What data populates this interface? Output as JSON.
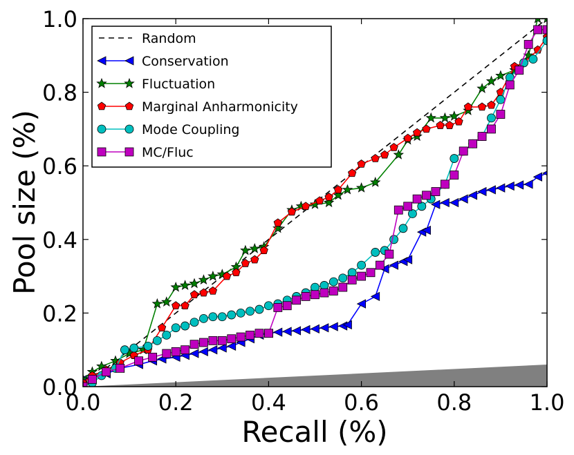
{
  "chart_data": {
    "type": "line",
    "title": "",
    "xlabel": "Recall (%)",
    "ylabel": "Pool size (%)",
    "xlim": [
      0.0,
      1.0
    ],
    "ylim": [
      0.0,
      1.0
    ],
    "xticks": [
      "0.0",
      "0.2",
      "0.4",
      "0.6",
      "0.8",
      "1.0"
    ],
    "yticks": [
      "0.0",
      "0.2",
      "0.4",
      "0.6",
      "0.8",
      "1.0"
    ],
    "legend_position": "top-left",
    "shaded_region": {
      "description": "gray baseline wedge",
      "x": [
        0.0,
        1.0
      ],
      "y_upper": [
        0.0,
        0.06
      ],
      "color": "#808080"
    },
    "series": [
      {
        "name": "Random",
        "color": "#000000",
        "style": "dashed",
        "marker": "none",
        "x": [
          0.0,
          1.0
        ],
        "y": [
          0.0,
          1.0
        ]
      },
      {
        "name": "Conservation",
        "color": "#0000ff",
        "style": "solid",
        "marker": "triangle-left",
        "x": [
          0.0,
          0.02,
          0.05,
          0.08,
          0.12,
          0.15,
          0.17,
          0.2,
          0.22,
          0.24,
          0.26,
          0.28,
          0.3,
          0.32,
          0.34,
          0.36,
          0.38,
          0.4,
          0.42,
          0.44,
          0.46,
          0.48,
          0.5,
          0.52,
          0.54,
          0.56,
          0.57,
          0.6,
          0.63,
          0.65,
          0.67,
          0.69,
          0.7,
          0.73,
          0.74,
          0.76,
          0.78,
          0.8,
          0.82,
          0.84,
          0.86,
          0.88,
          0.9,
          0.92,
          0.94,
          0.96,
          0.98,
          1.0
        ],
        "y": [
          0.02,
          0.025,
          0.035,
          0.05,
          0.06,
          0.07,
          0.075,
          0.08,
          0.085,
          0.09,
          0.095,
          0.1,
          0.105,
          0.11,
          0.12,
          0.13,
          0.14,
          0.145,
          0.148,
          0.15,
          0.152,
          0.155,
          0.157,
          0.16,
          0.163,
          0.165,
          0.168,
          0.225,
          0.245,
          0.32,
          0.33,
          0.34,
          0.345,
          0.42,
          0.425,
          0.495,
          0.5,
          0.5,
          0.51,
          0.52,
          0.53,
          0.535,
          0.54,
          0.545,
          0.548,
          0.55,
          0.57,
          0.58
        ]
      },
      {
        "name": "Fluctuation",
        "color": "#008000",
        "style": "solid",
        "marker": "star",
        "x": [
          0.0,
          0.02,
          0.04,
          0.07,
          0.1,
          0.13,
          0.16,
          0.18,
          0.2,
          0.22,
          0.24,
          0.26,
          0.28,
          0.3,
          0.33,
          0.35,
          0.37,
          0.39,
          0.42,
          0.45,
          0.47,
          0.5,
          0.53,
          0.55,
          0.57,
          0.6,
          0.63,
          0.68,
          0.7,
          0.72,
          0.75,
          0.78,
          0.8,
          0.83,
          0.86,
          0.88,
          0.9,
          0.93,
          0.96,
          0.98,
          1.0
        ],
        "y": [
          0.02,
          0.04,
          0.055,
          0.07,
          0.09,
          0.1,
          0.225,
          0.23,
          0.27,
          0.275,
          0.28,
          0.29,
          0.3,
          0.305,
          0.325,
          0.37,
          0.375,
          0.38,
          0.43,
          0.48,
          0.49,
          0.495,
          0.5,
          0.52,
          0.535,
          0.54,
          0.555,
          0.63,
          0.67,
          0.68,
          0.73,
          0.73,
          0.735,
          0.75,
          0.81,
          0.83,
          0.845,
          0.86,
          0.9,
          1.0,
          1.0
        ]
      },
      {
        "name": "Marginal Anharmonicity",
        "color": "#ff0000",
        "style": "solid",
        "marker": "pentagon",
        "x": [
          0.0,
          0.02,
          0.05,
          0.08,
          0.11,
          0.14,
          0.17,
          0.2,
          0.22,
          0.24,
          0.26,
          0.28,
          0.31,
          0.33,
          0.35,
          0.37,
          0.39,
          0.42,
          0.45,
          0.48,
          0.51,
          0.53,
          0.55,
          0.58,
          0.6,
          0.63,
          0.65,
          0.67,
          0.7,
          0.72,
          0.74,
          0.77,
          0.79,
          0.81,
          0.83,
          0.86,
          0.88,
          0.9,
          0.93,
          0.95,
          0.98,
          1.0
        ],
        "y": [
          0.01,
          0.03,
          0.045,
          0.065,
          0.085,
          0.1,
          0.16,
          0.22,
          0.22,
          0.25,
          0.255,
          0.26,
          0.3,
          0.31,
          0.335,
          0.345,
          0.37,
          0.445,
          0.475,
          0.49,
          0.505,
          0.515,
          0.535,
          0.58,
          0.605,
          0.62,
          0.63,
          0.65,
          0.675,
          0.69,
          0.7,
          0.71,
          0.71,
          0.72,
          0.76,
          0.76,
          0.765,
          0.8,
          0.87,
          0.88,
          0.915,
          0.95
        ]
      },
      {
        "name": "Mode Coupling",
        "color": "#00bfbf",
        "style": "solid",
        "marker": "circle",
        "x": [
          0.0,
          0.02,
          0.04,
          0.07,
          0.09,
          0.11,
          0.14,
          0.16,
          0.18,
          0.2,
          0.22,
          0.24,
          0.26,
          0.28,
          0.3,
          0.32,
          0.34,
          0.36,
          0.38,
          0.4,
          0.42,
          0.44,
          0.46,
          0.48,
          0.5,
          0.52,
          0.54,
          0.56,
          0.58,
          0.6,
          0.63,
          0.65,
          0.67,
          0.69,
          0.71,
          0.73,
          0.75,
          0.78,
          0.8,
          0.82,
          0.84,
          0.86,
          0.88,
          0.9,
          0.92,
          0.95,
          0.97,
          1.0
        ],
        "y": [
          0.0,
          0.01,
          0.03,
          0.05,
          0.1,
          0.105,
          0.11,
          0.125,
          0.14,
          0.16,
          0.165,
          0.175,
          0.185,
          0.19,
          0.19,
          0.195,
          0.2,
          0.205,
          0.21,
          0.22,
          0.225,
          0.235,
          0.245,
          0.255,
          0.27,
          0.275,
          0.285,
          0.295,
          0.31,
          0.33,
          0.365,
          0.37,
          0.4,
          0.43,
          0.47,
          0.49,
          0.51,
          0.55,
          0.62,
          0.64,
          0.66,
          0.68,
          0.73,
          0.78,
          0.84,
          0.88,
          0.89,
          0.94
        ]
      },
      {
        "name": "MC/Fluc",
        "color": "#bf00bf",
        "style": "solid",
        "marker": "square",
        "x": [
          0.0,
          0.02,
          0.05,
          0.08,
          0.12,
          0.15,
          0.18,
          0.2,
          0.22,
          0.24,
          0.26,
          0.28,
          0.3,
          0.32,
          0.34,
          0.36,
          0.38,
          0.4,
          0.42,
          0.44,
          0.46,
          0.48,
          0.5,
          0.52,
          0.54,
          0.56,
          0.58,
          0.6,
          0.62,
          0.64,
          0.66,
          0.68,
          0.7,
          0.72,
          0.74,
          0.76,
          0.78,
          0.8,
          0.82,
          0.84,
          0.86,
          0.88,
          0.9,
          0.92,
          0.94,
          0.96,
          0.98,
          1.0
        ],
        "y": [
          0.0,
          0.02,
          0.04,
          0.05,
          0.07,
          0.08,
          0.09,
          0.095,
          0.1,
          0.115,
          0.12,
          0.125,
          0.125,
          0.13,
          0.135,
          0.14,
          0.145,
          0.145,
          0.215,
          0.22,
          0.235,
          0.245,
          0.25,
          0.255,
          0.26,
          0.27,
          0.29,
          0.3,
          0.31,
          0.33,
          0.36,
          0.48,
          0.49,
          0.51,
          0.52,
          0.53,
          0.55,
          0.575,
          0.64,
          0.66,
          0.68,
          0.7,
          0.74,
          0.82,
          0.86,
          0.93,
          0.97,
          0.97
        ]
      }
    ]
  }
}
